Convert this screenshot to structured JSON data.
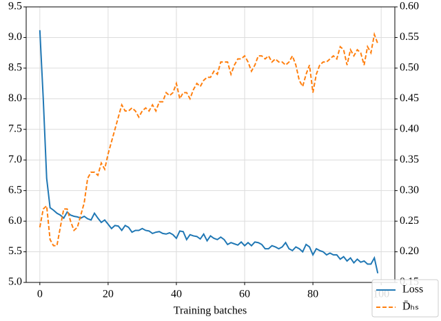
{
  "chart_data": {
    "type": "line",
    "xlabel": "Training batches",
    "x": [
      0,
      1,
      2,
      3,
      4,
      5,
      6,
      7,
      8,
      9,
      10,
      11,
      12,
      13,
      14,
      15,
      16,
      17,
      18,
      19,
      20,
      21,
      22,
      23,
      24,
      25,
      26,
      27,
      28,
      29,
      30,
      31,
      32,
      33,
      34,
      35,
      36,
      37,
      38,
      39,
      40,
      41,
      42,
      43,
      44,
      45,
      46,
      47,
      48,
      49,
      50,
      51,
      52,
      53,
      54,
      55,
      56,
      57,
      58,
      59,
      60,
      61,
      62,
      63,
      64,
      65,
      66,
      67,
      68,
      69,
      70,
      71,
      72,
      73,
      74,
      75,
      76,
      77,
      78,
      79,
      80,
      81,
      82,
      83,
      84,
      85,
      86,
      87,
      88,
      89,
      90,
      91,
      92,
      93,
      94,
      95,
      96,
      97,
      98,
      99
    ],
    "series": [
      {
        "name": "Loss",
        "color": "#1f77b4",
        "dash": "solid",
        "axis": "y",
        "values": [
          9.12,
          8.0,
          6.7,
          6.22,
          6.18,
          6.13,
          6.1,
          6.05,
          6.15,
          6.1,
          6.08,
          6.07,
          6.05,
          6.08,
          6.04,
          6.02,
          6.13,
          6.05,
          5.98,
          6.02,
          5.95,
          5.88,
          5.93,
          5.92,
          5.85,
          5.93,
          5.9,
          5.82,
          5.85,
          5.85,
          5.88,
          5.85,
          5.84,
          5.8,
          5.82,
          5.83,
          5.8,
          5.79,
          5.81,
          5.78,
          5.72,
          5.84,
          5.83,
          5.7,
          5.78,
          5.76,
          5.75,
          5.71,
          5.79,
          5.68,
          5.76,
          5.72,
          5.7,
          5.74,
          5.7,
          5.62,
          5.65,
          5.63,
          5.61,
          5.66,
          5.6,
          5.65,
          5.6,
          5.66,
          5.65,
          5.62,
          5.55,
          5.55,
          5.6,
          5.58,
          5.55,
          5.58,
          5.65,
          5.55,
          5.52,
          5.58,
          5.55,
          5.5,
          5.62,
          5.58,
          5.45,
          5.55,
          5.52,
          5.5,
          5.45,
          5.48,
          5.45,
          5.45,
          5.38,
          5.42,
          5.35,
          5.4,
          5.32,
          5.38,
          5.33,
          5.35,
          5.3,
          5.3,
          5.4,
          5.15
        ]
      },
      {
        "name": "D̄ₕₛ",
        "color": "#ff7f0e",
        "dash": "dashed",
        "axis": "y2",
        "values": [
          0.24,
          0.27,
          0.275,
          0.22,
          0.21,
          0.21,
          0.24,
          0.27,
          0.27,
          0.25,
          0.235,
          0.24,
          0.26,
          0.28,
          0.32,
          0.33,
          0.33,
          0.325,
          0.345,
          0.335,
          0.36,
          0.38,
          0.4,
          0.42,
          0.44,
          0.43,
          0.43,
          0.435,
          0.43,
          0.42,
          0.43,
          0.435,
          0.43,
          0.44,
          0.43,
          0.445,
          0.445,
          0.46,
          0.455,
          0.46,
          0.475,
          0.45,
          0.46,
          0.46,
          0.45,
          0.465,
          0.475,
          0.47,
          0.48,
          0.485,
          0.485,
          0.495,
          0.49,
          0.51,
          0.51,
          0.51,
          0.49,
          0.505,
          0.515,
          0.515,
          0.52,
          0.51,
          0.495,
          0.505,
          0.52,
          0.52,
          0.515,
          0.52,
          0.51,
          0.515,
          0.51,
          0.51,
          0.505,
          0.51,
          0.52,
          0.505,
          0.48,
          0.47,
          0.49,
          0.505,
          0.46,
          0.49,
          0.505,
          0.51,
          0.51,
          0.515,
          0.52,
          0.515,
          0.535,
          0.53,
          0.505,
          0.53,
          0.52,
          0.53,
          0.525,
          0.505,
          0.535,
          0.525,
          0.555,
          0.54
        ]
      }
    ],
    "xlim": [
      -4,
      104
    ],
    "xticks": [
      0,
      20,
      40,
      60,
      80,
      100
    ],
    "ylim": [
      5.0,
      9.5
    ],
    "yticks": [
      {
        "value": 5,
        "label": "5.0"
      },
      5.5,
      {
        "value": 6,
        "label": "6.0"
      },
      6.5,
      {
        "value": 7,
        "label": "7.0"
      },
      7.5,
      {
        "value": 8,
        "label": "8.0"
      },
      8.5,
      {
        "value": 9,
        "label": "9.0"
      },
      9.5
    ],
    "y2lim": [
      0.15,
      0.6
    ],
    "y2ticks": [
      0.15,
      {
        "value": 0.2,
        "label": "0.20"
      },
      0.25,
      {
        "value": 0.3,
        "label": "0.30"
      },
      0.35,
      {
        "value": 0.4,
        "label": "0.40"
      },
      0.45,
      {
        "value": 0.5,
        "label": "0.50"
      },
      0.55,
      {
        "value": 0.6,
        "label": "0.60"
      }
    ],
    "grid": true,
    "legend": "lower right"
  }
}
